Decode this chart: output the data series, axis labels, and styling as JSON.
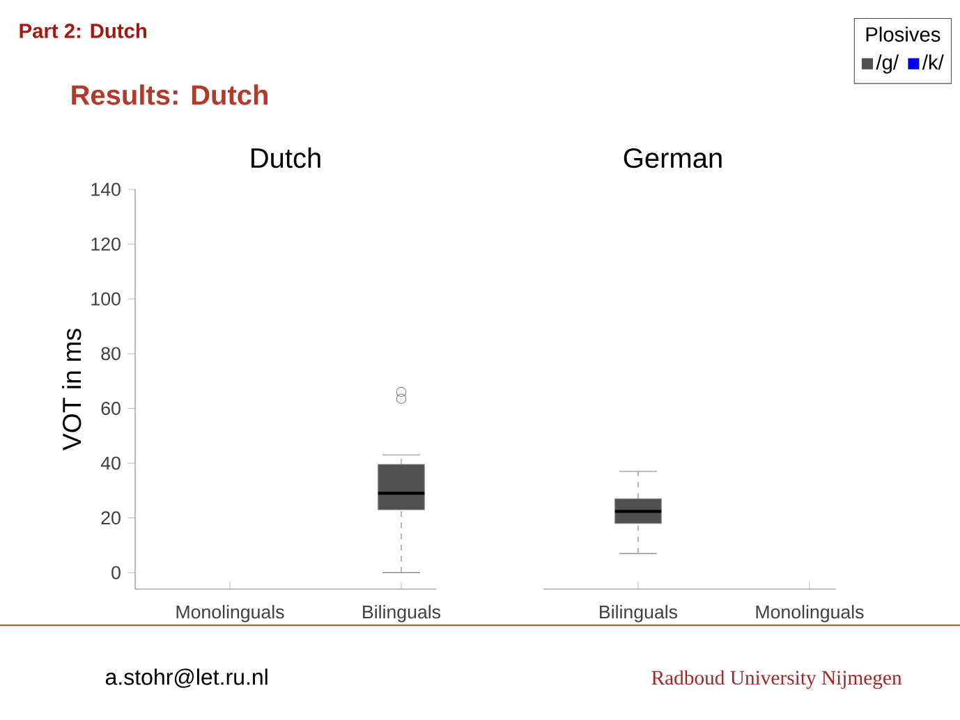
{
  "chart_data": [
    {
      "type": "box",
      "title": "Dutch",
      "ylabel": "VOT in ms",
      "categories": [
        "Monolinguals",
        "Bilinguals"
      ],
      "ylim": [
        -6,
        140
      ],
      "yticks": [
        0,
        20,
        40,
        60,
        80,
        100,
        120,
        140
      ],
      "series": [
        {
          "color": "#505050",
          "boxes": [
            null,
            {
              "low": 0,
              "q1": 23,
              "median": 29,
              "q3": 39.5,
              "high": 43,
              "outliers": [
                63.5,
                66
              ]
            }
          ]
        }
      ],
      "annotations": [
        "Part 2: Dutch",
        "Results: Dutch",
        "a.stohr@let.ru.nl",
        "Radboud University Nijmegen"
      ]
    },
    {
      "type": "box",
      "title": "German",
      "categories": [
        "Bilinguals",
        "Monolinguals"
      ],
      "ylim": [
        -6,
        140
      ],
      "tick_labels": "x",
      "legend": "top right",
      "legend_title": "Plosives",
      "series": [
        {
          "name": "/g/",
          "color": "#505050",
          "boxes": [
            {
              "low": 7,
              "q1": 18,
              "median": 22.4,
              "q3": 27,
              "high": 37
            },
            null
          ]
        },
        {
          "name": "/k/",
          "color": "#0000ee",
          "boxes": [
            null,
            null
          ]
        }
      ]
    }
  ]
}
